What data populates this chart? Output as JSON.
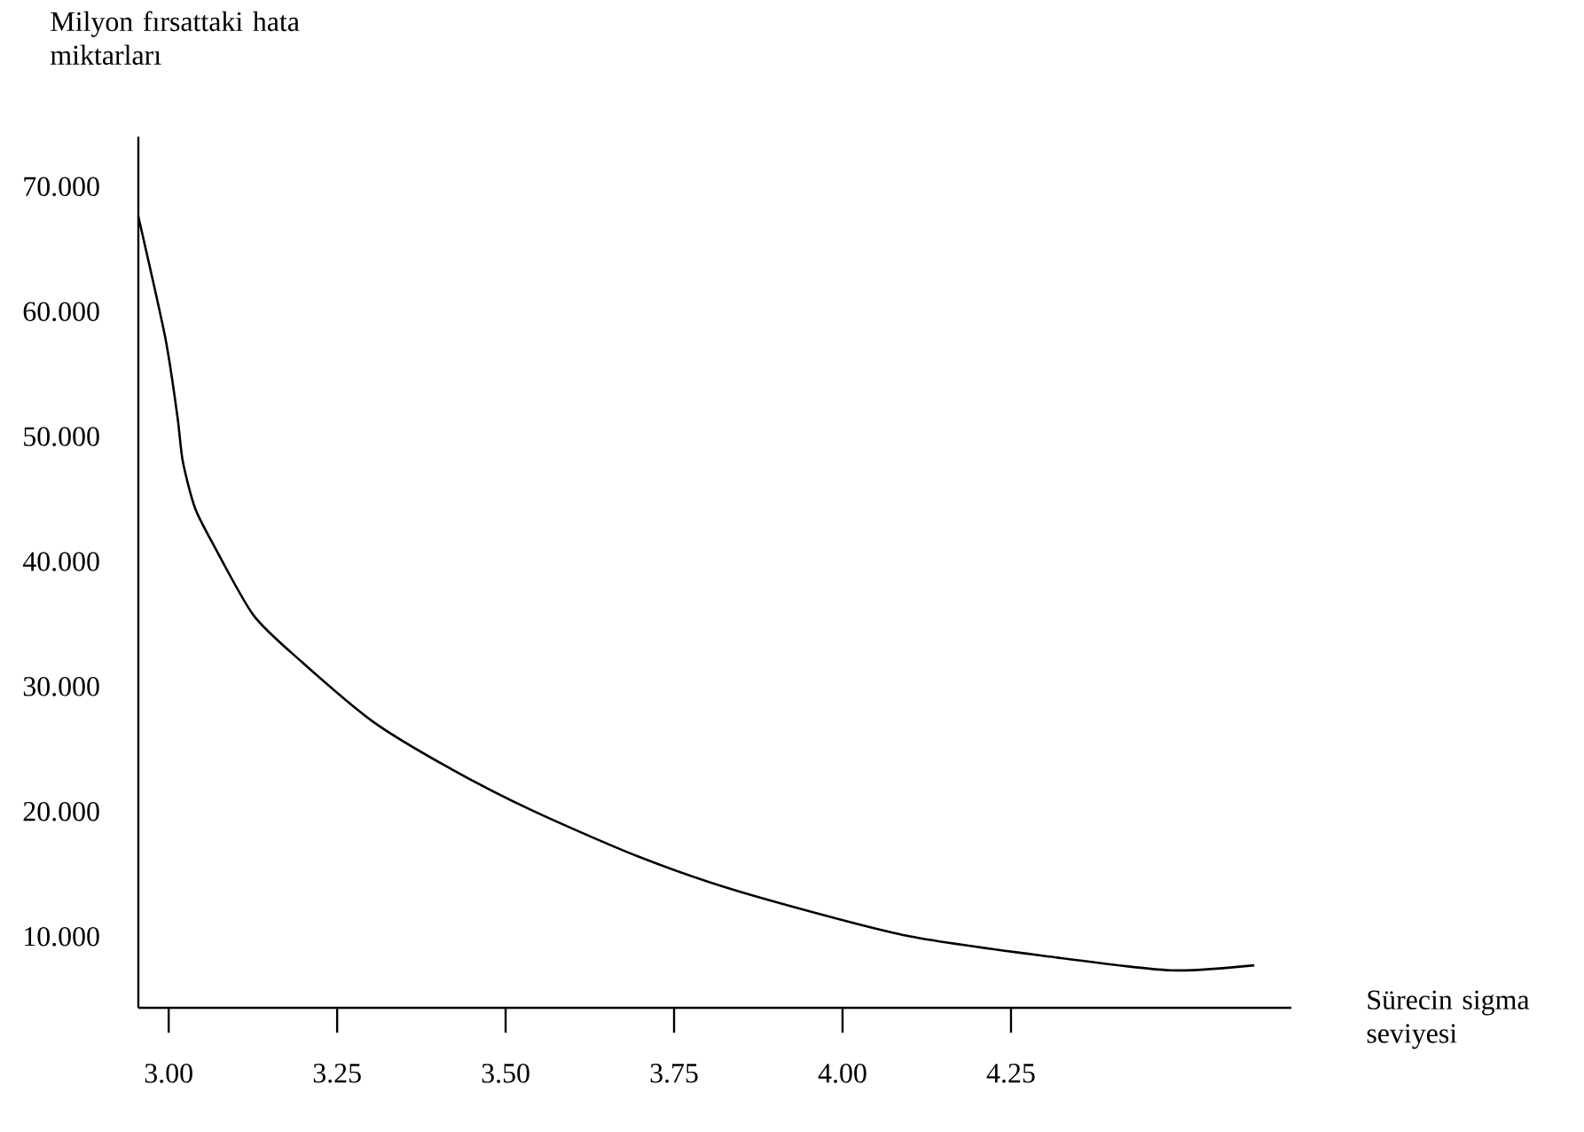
{
  "chart_data": {
    "type": "line",
    "xlabel": "Sürecin sigma seviyesi",
    "ylabel": "Milyon fırsattaki hata miktarları",
    "x": [
      2.955,
      2.995,
      3.013,
      3.021,
      3.039,
      3.066,
      3.126,
      3.197,
      3.303,
      3.416,
      3.539,
      3.697,
      3.847,
      4.092,
      4.321,
      4.487,
      4.611
    ],
    "series": [
      {
        "color": "#000000",
        "values": [
          67.6,
          57.9,
          51.6,
          48.0,
          44.3,
          41.4,
          35.7,
          32.0,
          27.2,
          23.5,
          20.1,
          16.4,
          13.6,
          10.1,
          8.3,
          7.3,
          7.7
        ]
      }
    ],
    "xlim": [
      2.955,
      4.666
    ],
    "ylim": [
      4.3,
      74
    ],
    "xticks": [
      {
        "value": 3,
        "label": "3.00"
      },
      {
        "value": 3.25,
        "label": "3.25"
      },
      {
        "value": 3.5,
        "label": "3.50"
      },
      {
        "value": 3.75,
        "label": "3.75"
      },
      {
        "value": 4,
        "label": "4.00"
      },
      {
        "value": 4.25,
        "label": "4.25"
      }
    ],
    "yticks": [
      {
        "value": 10,
        "label": "10.000"
      },
      {
        "value": 20,
        "label": "20.000"
      },
      {
        "value": 30,
        "label": "30.000"
      },
      {
        "value": 40,
        "label": "40.000"
      },
      {
        "value": 50,
        "label": "50.000"
      },
      {
        "value": 60,
        "label": "60.000"
      },
      {
        "value": 70,
        "label": "70.000"
      }
    ],
    "grid": false
  }
}
